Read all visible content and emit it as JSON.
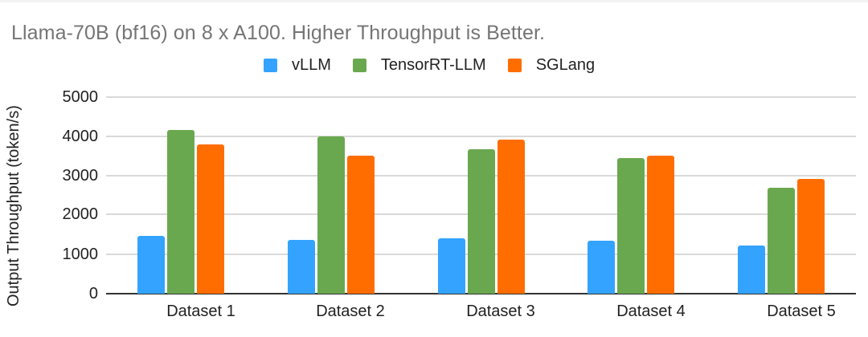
{
  "title": "Llama-70B (bf16) on 8 x A100. Higher Throughput is Better.",
  "legend": [
    {
      "label": "vLLM",
      "color": "#33a3ff"
    },
    {
      "label": "TensorRT-LLM",
      "color": "#6aa84f"
    },
    {
      "label": "SGLang",
      "color": "#ff6d00"
    }
  ],
  "y_axis": {
    "label": "Output Throughput (token/s)",
    "ticks": [
      "5000",
      "4000",
      "3000",
      "2000",
      "1000",
      "0"
    ]
  },
  "x_axis": {
    "ticks": [
      "Dataset 1",
      "Dataset 2",
      "Dataset 3",
      "Dataset 4",
      "Dataset 5"
    ]
  },
  "chart_data": {
    "type": "bar",
    "title": "Llama-70B (bf16) on 8 x A100. Higher Throughput is Better.",
    "xlabel": "",
    "ylabel": "Output Throughput (token/s)",
    "ylim": [
      0,
      5000
    ],
    "yticks": [
      0,
      1000,
      2000,
      3000,
      4000,
      5000
    ],
    "grid": true,
    "legend_position": "top",
    "categories": [
      "Dataset 1",
      "Dataset 2",
      "Dataset 3",
      "Dataset 4",
      "Dataset 5"
    ],
    "series": [
      {
        "name": "vLLM",
        "color": "#33a3ff",
        "values": [
          1470,
          1370,
          1410,
          1350,
          1220
        ]
      },
      {
        "name": "TensorRT-LLM",
        "color": "#6aa84f",
        "values": [
          4160,
          4000,
          3670,
          3450,
          2700
        ]
      },
      {
        "name": "SGLang",
        "color": "#ff6d00",
        "values": [
          3800,
          3510,
          3920,
          3510,
          2920
        ]
      }
    ]
  }
}
